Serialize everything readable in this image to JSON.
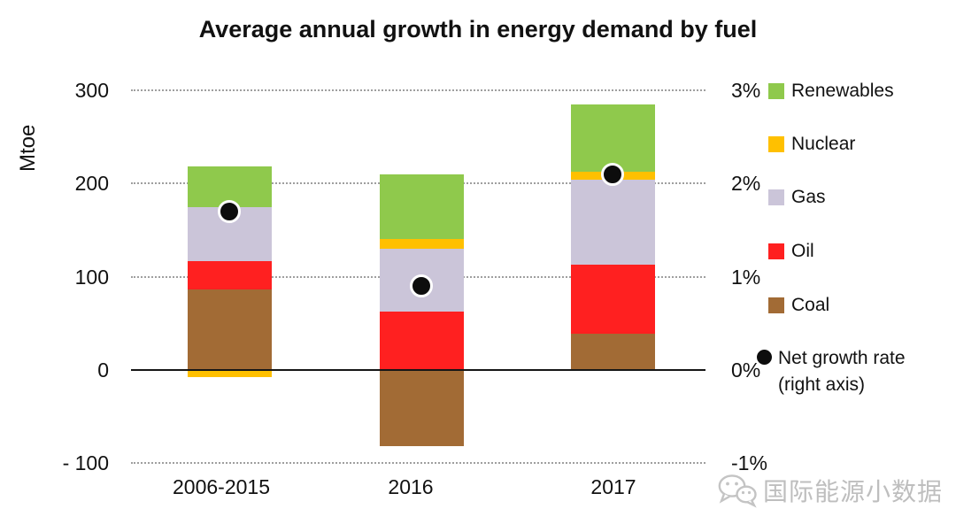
{
  "title": "Average annual growth in energy demand by fuel",
  "left_axis": {
    "unit_label": "Mtoe",
    "ticks": [
      {
        "label": "300",
        "value": 300
      },
      {
        "label": "200",
        "value": 200
      },
      {
        "label": "100",
        "value": 100
      },
      {
        "label": "0",
        "value": 0
      },
      {
        "label": "- 100",
        "value": -100
      }
    ]
  },
  "right_axis": {
    "ticks": [
      {
        "label": "3%",
        "value": 3
      },
      {
        "label": "2%",
        "value": 2
      },
      {
        "label": "1%",
        "value": 1
      },
      {
        "label": "0%",
        "value": 0
      },
      {
        "label": "-1%",
        "value": -1
      }
    ]
  },
  "legend": {
    "items": [
      {
        "label": "Renewables",
        "color": "#8FC94C"
      },
      {
        "label": "Nuclear",
        "color": "#FFC000"
      },
      {
        "label": "Gas",
        "color": "#CBC5D9"
      },
      {
        "label": "Oil",
        "color": "#FF2020"
      },
      {
        "label": "Coal",
        "color": "#A26B35"
      }
    ],
    "net_growth": {
      "line1": "Net growth rate",
      "line2": "(right axis)",
      "marker_color": "#0D0D0D"
    }
  },
  "watermark": {
    "icon": "wechat-icon",
    "text": "国际能源小数据"
  },
  "chart_data": {
    "type": "bar",
    "subtype": "stacked-columns-with-point-overlay",
    "title": "Average annual growth in energy demand by fuel",
    "categories": [
      "2006-2015",
      "2016",
      "2017"
    ],
    "series": [
      {
        "name": "Coal",
        "color": "#A26B35",
        "values": [
          86,
          -82,
          39
        ]
      },
      {
        "name": "Oil",
        "color": "#FF2020",
        "values": [
          31,
          62,
          74
        ]
      },
      {
        "name": "Gas",
        "color": "#CBC5D9",
        "values": [
          58,
          68,
          91
        ]
      },
      {
        "name": "Nuclear",
        "color": "#FFC000",
        "values": [
          -8,
          10,
          9
        ]
      },
      {
        "name": "Renewables",
        "color": "#8FC94C",
        "values": [
          43,
          70,
          72
        ]
      }
    ],
    "point_series": {
      "name": "Net growth rate (right axis)",
      "axis": "right",
      "unit": "%",
      "values": [
        1.7,
        0.9,
        2.1
      ],
      "color": "#0D0D0D"
    },
    "left_ylabel": "Mtoe",
    "left_ylim": [
      -100,
      300
    ],
    "right_ylim": [
      -1,
      3
    ],
    "gridlines": "horizontal-dotted",
    "zero_line": "solid-black",
    "legend_position": "right"
  }
}
